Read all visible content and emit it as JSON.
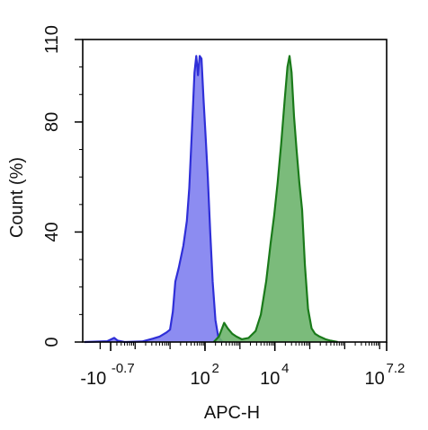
{
  "chart_data": {
    "type": "area",
    "title": "",
    "xlabel": "APC-H",
    "ylabel": "Count  (%)",
    "xscale": "log",
    "xlim_log10": [
      -1.5,
      7.2
    ],
    "ylim": [
      0,
      110
    ],
    "y_ticks": [
      {
        "value": 0,
        "label": "0"
      },
      {
        "value": 40,
        "label": "40"
      },
      {
        "value": 80,
        "label": "80"
      },
      {
        "value": 110,
        "label": "110"
      }
    ],
    "x_ticks": [
      {
        "log10": -0.7,
        "base": "-10",
        "exp": "-0.7"
      },
      {
        "log10": 2,
        "base": "10",
        "exp": "2"
      },
      {
        "log10": 4,
        "base": "10",
        "exp": "4"
      },
      {
        "log10": 7.2,
        "base": "10",
        "exp": "7.2"
      }
    ],
    "grid": false,
    "legend": "none",
    "series": [
      {
        "color": "#2f2fd8",
        "fill": "#7f7ff0",
        "points": [
          [
            -1.45,
            0
          ],
          [
            -0.8,
            0.3
          ],
          [
            -0.6,
            1.5
          ],
          [
            -0.5,
            0.5
          ],
          [
            -0.3,
            0
          ],
          [
            0.2,
            0.2
          ],
          [
            0.5,
            1.2
          ],
          [
            0.7,
            2.0
          ],
          [
            0.9,
            3.5
          ],
          [
            1.0,
            4.5
          ],
          [
            1.08,
            11
          ],
          [
            1.15,
            22
          ],
          [
            1.25,
            27
          ],
          [
            1.38,
            35
          ],
          [
            1.48,
            44
          ],
          [
            1.55,
            56
          ],
          [
            1.63,
            78
          ],
          [
            1.7,
            98
          ],
          [
            1.75,
            104
          ],
          [
            1.8,
            97
          ],
          [
            1.85,
            104
          ],
          [
            1.9,
            103
          ],
          [
            1.96,
            88
          ],
          [
            2.02,
            74
          ],
          [
            2.08,
            60
          ],
          [
            2.15,
            40
          ],
          [
            2.22,
            22
          ],
          [
            2.3,
            8
          ],
          [
            2.38,
            2
          ],
          [
            2.5,
            0
          ]
        ]
      },
      {
        "color": "#1a7a1a",
        "fill": "#6db46d",
        "points": [
          [
            2.25,
            0
          ],
          [
            2.4,
            2
          ],
          [
            2.55,
            7
          ],
          [
            2.65,
            5
          ],
          [
            2.78,
            3
          ],
          [
            2.9,
            2
          ],
          [
            3.05,
            1
          ],
          [
            3.25,
            1.5
          ],
          [
            3.45,
            4
          ],
          [
            3.6,
            10
          ],
          [
            3.75,
            22
          ],
          [
            3.88,
            36
          ],
          [
            3.98,
            46
          ],
          [
            4.08,
            58
          ],
          [
            4.18,
            72
          ],
          [
            4.28,
            88
          ],
          [
            4.36,
            100
          ],
          [
            4.42,
            104
          ],
          [
            4.48,
            98
          ],
          [
            4.55,
            82
          ],
          [
            4.62,
            70
          ],
          [
            4.7,
            58
          ],
          [
            4.78,
            48
          ],
          [
            4.86,
            28
          ],
          [
            4.95,
            12
          ],
          [
            5.05,
            5
          ],
          [
            5.15,
            3
          ],
          [
            5.28,
            2
          ],
          [
            5.45,
            1
          ],
          [
            5.6,
            0.5
          ],
          [
            5.8,
            0
          ]
        ]
      }
    ]
  }
}
